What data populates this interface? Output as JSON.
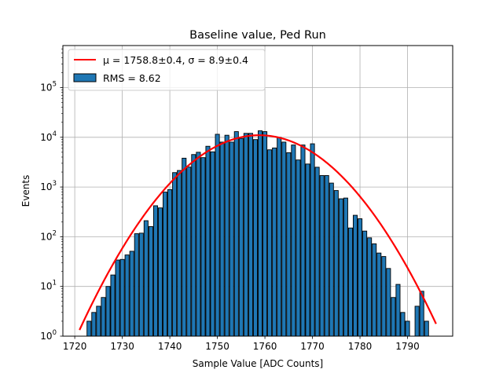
{
  "chart_data": {
    "type": "bar",
    "title": "Baseline value, Ped Run",
    "xlabel": "Sample Value [ADC Counts]",
    "ylabel": "Events",
    "xlim": [
      1717.5,
      1799.5
    ],
    "ylim": [
      1,
      700000
    ],
    "yscale": "log",
    "grid": true,
    "legend_position": "top-left",
    "x_ticks": [
      1720,
      1730,
      1740,
      1750,
      1760,
      1770,
      1780,
      1790
    ],
    "y_ticks": [
      {
        "value": 1,
        "base": "10",
        "exp": "0"
      },
      {
        "value": 10,
        "base": "10",
        "exp": "1"
      },
      {
        "value": 100,
        "base": "10",
        "exp": "2"
      },
      {
        "value": 1000,
        "base": "10",
        "exp": "3"
      },
      {
        "value": 10000,
        "base": "10",
        "exp": "4"
      },
      {
        "value": 100000,
        "base": "10",
        "exp": "5"
      }
    ],
    "bin_width": 0.85,
    "series": [
      {
        "name": "RMS = 8.62",
        "kind": "histogram",
        "color": "#1f77b4",
        "edgecolor": "#000000",
        "x": [
          1722,
          1723,
          1724,
          1725,
          1726,
          1727,
          1728,
          1729,
          1730,
          1731,
          1732,
          1733,
          1734,
          1735,
          1736,
          1737,
          1738,
          1739,
          1740,
          1741,
          1742,
          1743,
          1744,
          1745,
          1746,
          1747,
          1748,
          1749,
          1750,
          1751,
          1752,
          1753,
          1754,
          1755,
          1756,
          1757,
          1758,
          1759,
          1760,
          1761,
          1762,
          1763,
          1764,
          1765,
          1766,
          1767,
          1768,
          1769,
          1770,
          1771,
          1772,
          1773,
          1774,
          1775,
          1776,
          1777,
          1778,
          1779,
          1780,
          1781,
          1782,
          1783,
          1784,
          1785,
          1786,
          1787,
          1788,
          1789,
          1790,
          1791,
          1792,
          1793,
          1794
        ],
        "values": [
          1,
          2,
          3,
          4,
          6,
          10,
          17,
          34,
          35,
          43,
          51,
          115,
          118,
          210,
          160,
          420,
          380,
          790,
          890,
          1950,
          2150,
          3800,
          2520,
          4500,
          5000,
          3900,
          6600,
          5100,
          11500,
          8000,
          11000,
          8000,
          13000,
          9500,
          12000,
          12000,
          9000,
          13500,
          13000,
          5600,
          6100,
          10000,
          8000,
          4900,
          7000,
          3500,
          7000,
          2900,
          7400,
          2500,
          1700,
          1700,
          1200,
          850,
          580,
          600,
          150,
          270,
          230,
          130,
          95,
          72,
          47,
          40,
          23,
          6,
          11,
          3,
          2,
          1,
          4,
          8,
          2
        ]
      },
      {
        "name": "μ = 1758.8±0.4, σ = 8.9±0.4",
        "kind": "line",
        "color": "#ff0000",
        "mu": 1758.8,
        "sigma": 8.9,
        "amplitude": 11000,
        "x_range": [
          1721,
          1796
        ]
      }
    ]
  }
}
